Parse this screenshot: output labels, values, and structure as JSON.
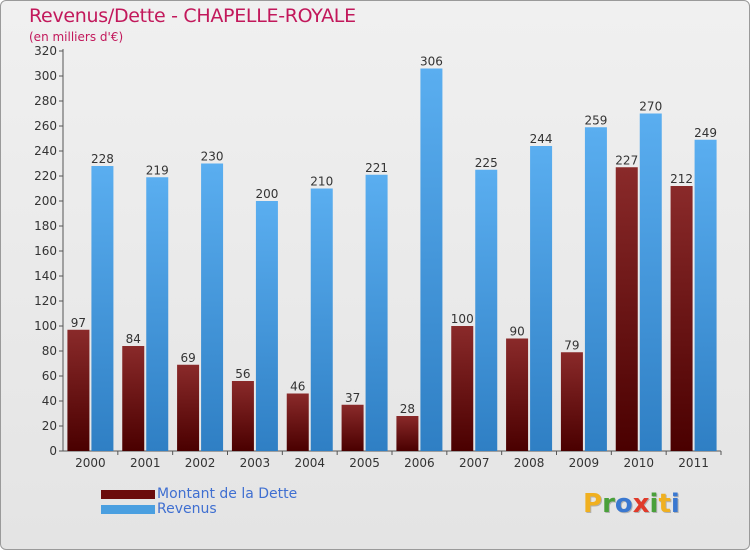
{
  "header": {
    "title": "Revenus/Dette - CHAPELLE-ROYALE",
    "subtitle": "(en milliers d'€)"
  },
  "legend": {
    "items": [
      {
        "label": "Montant de la Dette",
        "color": "#6b0c0c"
      },
      {
        "label": "Revenus",
        "color": "#4a9fe0"
      }
    ]
  },
  "logo": {
    "letters": [
      "P",
      "r",
      "o",
      "x",
      "i",
      "t",
      "i"
    ],
    "colors": [
      "#f0b020",
      "#4aa03a",
      "#3a78d0",
      "#e03a2a",
      "#4aa03a",
      "#f0b020",
      "#3a78d0"
    ]
  },
  "chart_data": {
    "type": "bar",
    "title": "Revenus/Dette - CHAPELLE-ROYALE",
    "subtitle": "(en milliers d'€)",
    "xlabel": "",
    "ylabel": "",
    "ylim": [
      0,
      320
    ],
    "ytick_step": 20,
    "grid": false,
    "legend_position": "bottom-left",
    "categories": [
      "2000",
      "2001",
      "2002",
      "2003",
      "2004",
      "2005",
      "2006",
      "2007",
      "2008",
      "2009",
      "2010",
      "2011"
    ],
    "series": [
      {
        "name": "Montant de la Dette",
        "color": "#6b0c0c",
        "values": [
          97,
          84,
          69,
          56,
          46,
          37,
          28,
          100,
          90,
          79,
          227,
          212
        ]
      },
      {
        "name": "Revenus",
        "color": "#4a9fe0",
        "values": [
          228,
          219,
          230,
          200,
          210,
          221,
          306,
          225,
          244,
          259,
          270,
          249
        ]
      }
    ]
  }
}
